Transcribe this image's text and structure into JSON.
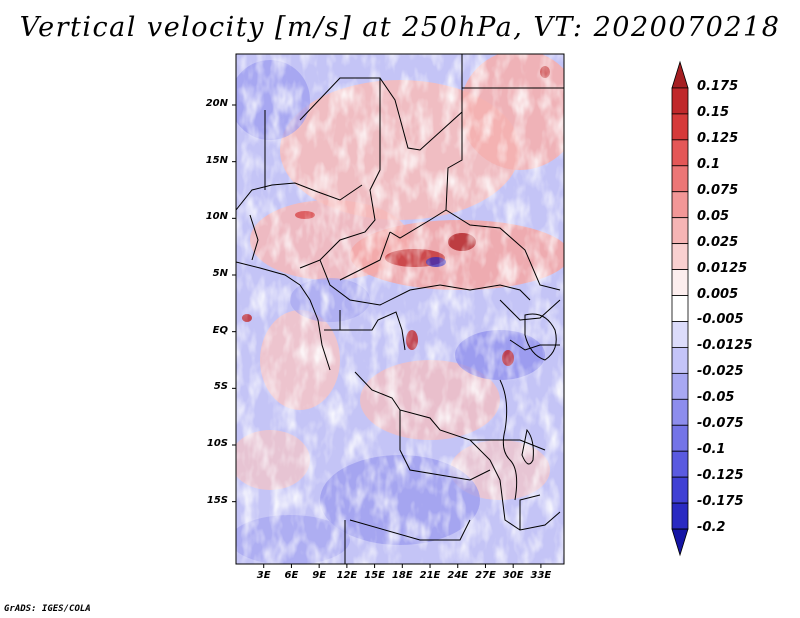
{
  "title": "Vertical velocity [m/s] at 250hPa, VT: 2020070218",
  "footer": "GrADS: IGES/COLA",
  "map": {
    "lon_range": [
      0,
      35.5
    ],
    "lat_range": [
      -20.5,
      24.5
    ],
    "lat_ticks": [
      {
        "value": 20,
        "label": "20N"
      },
      {
        "value": 15,
        "label": "15N"
      },
      {
        "value": 10,
        "label": "10N"
      },
      {
        "value": 5,
        "label": "5N"
      },
      {
        "value": 0,
        "label": "EQ"
      },
      {
        "value": -5,
        "label": "5S"
      },
      {
        "value": -10,
        "label": "10S"
      },
      {
        "value": -15,
        "label": "15S"
      }
    ],
    "lon_ticks": [
      {
        "value": 3,
        "label": "3E"
      },
      {
        "value": 6,
        "label": "6E"
      },
      {
        "value": 9,
        "label": "9E"
      },
      {
        "value": 12,
        "label": "12E"
      },
      {
        "value": 15,
        "label": "15E"
      },
      {
        "value": 18,
        "label": "18E"
      },
      {
        "value": 21,
        "label": "21E"
      },
      {
        "value": 24,
        "label": "24E"
      },
      {
        "value": 27,
        "label": "27E"
      },
      {
        "value": 30,
        "label": "30E"
      },
      {
        "value": 33,
        "label": "33E"
      }
    ]
  },
  "colorbar": {
    "labels": [
      "0.175",
      "0.15",
      "0.125",
      "0.1",
      "0.075",
      "0.05",
      "0.025",
      "0.0125",
      "0.005",
      "-0.005",
      "-0.0125",
      "-0.025",
      "-0.05",
      "-0.075",
      "-0.1",
      "-0.125",
      "-0.175",
      "-0.2"
    ],
    "colors": [
      "#a51f22",
      "#c0282b",
      "#d63a3a",
      "#e45757",
      "#ec7676",
      "#f29797",
      "#f6b5b5",
      "#f9d0d0",
      "#fdeeee",
      "#ffffff",
      "#dcdcfb",
      "#c4c4f8",
      "#a8a8f2",
      "#8d8ded",
      "#7474e7",
      "#5a5ae0",
      "#4040d4",
      "#2a2ac2",
      "#1515a5"
    ]
  }
}
